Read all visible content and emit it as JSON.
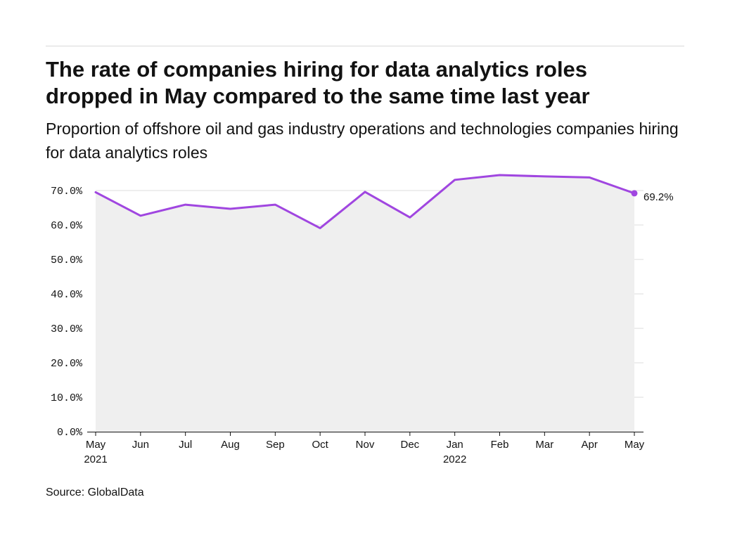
{
  "title": "The rate of companies hiring for data analytics roles dropped in May compared to the same time last year",
  "subtitle": "Proportion of offshore oil and gas industry operations and technologies companies hiring for data analytics roles",
  "source": "Source: GlobalData",
  "colors": {
    "line": "#a046e0",
    "area": "#efefef",
    "grid": "#dcdcdc",
    "axis": "#121212"
  },
  "chart_data": {
    "type": "area",
    "categories": [
      "May",
      "Jun",
      "Jul",
      "Aug",
      "Sep",
      "Oct",
      "Nov",
      "Dec",
      "Jan",
      "Feb",
      "Mar",
      "Apr",
      "May"
    ],
    "year_labels": [
      "2021",
      "",
      "",
      "",
      "",
      "",
      "",
      "",
      "2022",
      "",
      "",
      "",
      ""
    ],
    "series": [
      {
        "values": [
          69.5,
          62.7,
          65.9,
          64.7,
          65.9,
          59.1,
          69.6,
          62.2,
          73.1,
          74.5,
          74.1,
          73.8,
          69.2
        ]
      }
    ],
    "ylim": [
      0,
      70
    ],
    "yticks": [
      0,
      10,
      20,
      30,
      40,
      50,
      60,
      70
    ],
    "ytick_labels": [
      "0.0%",
      "10.0%",
      "20.0%",
      "30.0%",
      "40.0%",
      "50.0%",
      "60.0%",
      "70.0%"
    ],
    "end_label": "69.2%",
    "grid": true,
    "xlabel": "",
    "ylabel": ""
  }
}
